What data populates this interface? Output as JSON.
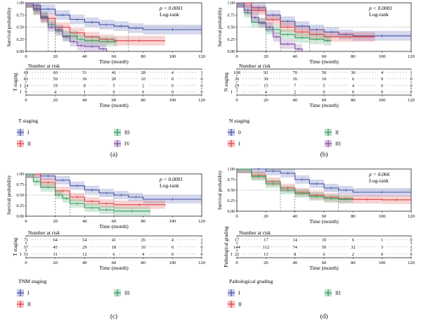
{
  "panels": [
    {
      "letter": "(a)",
      "ylabel": "Survival probability",
      "xlabel": "Time (month)",
      "pvalue": "p < 0.0001",
      "test": "Log-rank",
      "yticks": [
        "0.00",
        "0.25",
        "0.50",
        "0.75",
        "1.00"
      ],
      "xticks": [
        "0",
        "20",
        "40",
        "60",
        "80",
        "100",
        "120"
      ],
      "risk_title": "Number at risk",
      "risk_ylabel": "T staging",
      "risk_xlabel": "Time (month)",
      "legend_title": "T staging",
      "legend": [
        {
          "label": "I",
          "color": "#3f4fa8"
        },
        {
          "label": "III",
          "color": "#2e9b5a"
        },
        {
          "label": "II",
          "color": "#e03a3a"
        },
        {
          "label": "IV",
          "color": "#7d44a3"
        }
      ],
      "risk_rows": [
        {
          "label": "I",
          "color": "#3f4fa8",
          "values": [
            "69",
            "60",
            "51",
            "41",
            "28",
            "4",
            "1"
          ]
        },
        {
          "label": "II",
          "color": "#e03a3a",
          "values": [
            "81",
            "59",
            "36",
            "20",
            "10",
            "0",
            "0"
          ]
        },
        {
          "label": "III",
          "color": "#2e9b5a",
          "values": [
            "24",
            "19",
            "8",
            "5",
            "2",
            "0",
            "0"
          ]
        },
        {
          "label": "IV",
          "color": "#7d44a3",
          "values": [
            "9",
            "4",
            "1",
            "0",
            "0",
            "0",
            "0"
          ]
        }
      ]
    },
    {
      "letter": "(b)",
      "ylabel": "Survival probability",
      "xlabel": "Time (month)",
      "pvalue": "p < 0.0001",
      "test": "Log-rank",
      "yticks": [
        "0.00",
        "0.25",
        "0.50",
        "0.75",
        "1.00"
      ],
      "xticks": [
        "0",
        "20",
        "40",
        "60",
        "80",
        "100",
        "120"
      ],
      "risk_title": "Number at risk",
      "risk_ylabel": "N staging",
      "risk_xlabel": "Time (month)",
      "legend_title": "N staging",
      "legend": [
        {
          "label": "0",
          "color": "#3f4fa8"
        },
        {
          "label": "II",
          "color": "#2e9b5a"
        },
        {
          "label": "I",
          "color": "#e03a3a"
        },
        {
          "label": "III",
          "color": "#7d44a3"
        }
      ],
      "risk_rows": [
        {
          "label": "0",
          "color": "#3f4fa8",
          "values": [
            "108",
            "92",
            "70",
            "50",
            "30",
            "4",
            "1"
          ]
        },
        {
          "label": "I",
          "color": "#e03a3a",
          "values": [
            "36",
            "30",
            "16",
            "10",
            "6",
            "0",
            "0"
          ]
        },
        {
          "label": "II",
          "color": "#2e9b5a",
          "values": [
            "29",
            "15",
            "7",
            "5",
            "4",
            "0",
            "0"
          ]
        },
        {
          "label": "III",
          "color": "#7d44a3",
          "values": [
            "7",
            "4",
            "2",
            "0",
            "0",
            "0",
            "0"
          ]
        }
      ]
    },
    {
      "letter": "(c)",
      "ylabel": "Survival probability",
      "xlabel": "Time (month)",
      "pvalue": "p < 0.0001",
      "test": "Log-rank",
      "yticks": [
        "0.00",
        "0.25",
        "0.50",
        "0.75",
        "1.00"
      ],
      "xticks": [
        "0",
        "20",
        "40",
        "60",
        "80",
        "100",
        "120"
      ],
      "risk_title": "Number at risk",
      "risk_ylabel": "T staging",
      "risk_xlabel": "Time (month)",
      "legend_title": "TNM staging",
      "legend": [
        {
          "label": "I",
          "color": "#3f4fa8"
        },
        {
          "label": "III",
          "color": "#2e9b5a"
        },
        {
          "label": "II",
          "color": "#e03a3a"
        }
      ],
      "risk_rows": [
        {
          "label": "I",
          "color": "#3f4fa8",
          "values": [
            "71",
            "64",
            "54",
            "41",
            "26",
            "4",
            "1"
          ]
        },
        {
          "label": "II",
          "color": "#e03a3a",
          "values": [
            "57",
            "45",
            "29",
            "18",
            "10",
            "0",
            "0"
          ]
        },
        {
          "label": "III",
          "color": "#2e9b5a",
          "values": [
            "51",
            "31",
            "12",
            "6",
            "4",
            "0",
            "0"
          ]
        }
      ]
    },
    {
      "letter": "(d)",
      "ylabel": "Survival probability",
      "xlabel": "Time (month)",
      "pvalue": "p = 0.066",
      "test": "Log-rank",
      "yticks": [
        "0.00",
        "0.25",
        "0.50",
        "0.75",
        "1.00"
      ],
      "xticks": [
        "0",
        "20",
        "40",
        "60",
        "80",
        "100",
        "120"
      ],
      "risk_title": "Number at risk",
      "risk_ylabel": "Pathological grading",
      "risk_xlabel": "Time (month)",
      "legend_title": "Pathological grading",
      "legend": [
        {
          "label": "I",
          "color": "#3f4fa8"
        },
        {
          "label": "III",
          "color": "#2e9b5a"
        },
        {
          "label": "II",
          "color": "#e03a3a"
        }
      ],
      "risk_rows": [
        {
          "label": "I",
          "color": "#3f4fa8",
          "values": [
            "17",
            "17",
            "14",
            "10",
            "6",
            "1",
            "0"
          ]
        },
        {
          "label": "II",
          "color": "#e03a3a",
          "values": [
            "144",
            "112",
            "74",
            "50",
            "32",
            "3",
            "1"
          ]
        },
        {
          "label": "III",
          "color": "#2e9b5a",
          "values": [
            "22",
            "13",
            "8",
            "6",
            "2",
            "0",
            "0"
          ]
        }
      ]
    }
  ],
  "chart_data": [
    {
      "type": "line",
      "panel": "(a)",
      "xlim": [
        0,
        120
      ],
      "ylim": [
        0,
        1
      ],
      "series": [
        {
          "name": "I",
          "color": "#3f4fa8",
          "x": [
            0,
            5,
            10,
            20,
            30,
            40,
            50,
            60,
            70,
            80,
            120
          ],
          "y": [
            1.0,
            0.95,
            0.87,
            0.75,
            0.66,
            0.6,
            0.55,
            0.52,
            0.48,
            0.45,
            0.45
          ]
        },
        {
          "name": "II",
          "color": "#e03a3a",
          "x": [
            0,
            5,
            10,
            20,
            30,
            40,
            50,
            60,
            95
          ],
          "y": [
            1.0,
            0.85,
            0.68,
            0.5,
            0.38,
            0.3,
            0.25,
            0.22,
            0.22
          ]
        },
        {
          "name": "III",
          "color": "#2e9b5a",
          "x": [
            0,
            5,
            10,
            15,
            20,
            25,
            35,
            40,
            50,
            62
          ],
          "y": [
            1.0,
            0.85,
            0.72,
            0.55,
            0.42,
            0.32,
            0.25,
            0.22,
            0.2,
            0.2
          ]
        },
        {
          "name": "IV",
          "color": "#7d44a3",
          "x": [
            0,
            5,
            10,
            15,
            20,
            25,
            30,
            35,
            40,
            50,
            55
          ],
          "y": [
            1.0,
            0.88,
            0.7,
            0.5,
            0.45,
            0.3,
            0.2,
            0.12,
            0.1,
            0.05,
            0.0
          ]
        }
      ]
    },
    {
      "type": "line",
      "panel": "(b)",
      "xlim": [
        0,
        120
      ],
      "ylim": [
        0,
        1
      ],
      "series": [
        {
          "name": "0",
          "color": "#3f4fa8",
          "x": [
            0,
            10,
            20,
            30,
            40,
            50,
            60,
            70,
            80,
            120
          ],
          "y": [
            1.0,
            0.9,
            0.75,
            0.62,
            0.52,
            0.45,
            0.4,
            0.35,
            0.32,
            0.32
          ]
        },
        {
          "name": "I",
          "color": "#e03a3a",
          "x": [
            0,
            10,
            20,
            30,
            40,
            50,
            60,
            95
          ],
          "y": [
            1.0,
            0.85,
            0.65,
            0.5,
            0.4,
            0.35,
            0.3,
            0.3
          ]
        },
        {
          "name": "II",
          "color": "#2e9b5a",
          "x": [
            0,
            5,
            10,
            20,
            30,
            40,
            50,
            60,
            65
          ],
          "y": [
            1.0,
            0.8,
            0.6,
            0.45,
            0.35,
            0.28,
            0.25,
            0.22,
            0.22
          ]
        },
        {
          "name": "III",
          "color": "#7d44a3",
          "x": [
            0,
            5,
            10,
            15,
            20,
            25,
            30,
            40,
            45
          ],
          "y": [
            1.0,
            0.85,
            0.7,
            0.58,
            0.5,
            0.3,
            0.15,
            0.05,
            0.0
          ]
        }
      ]
    },
    {
      "type": "line",
      "panel": "(c)",
      "xlim": [
        0,
        120
      ],
      "ylim": [
        0,
        1
      ],
      "series": [
        {
          "name": "I",
          "color": "#3f4fa8",
          "x": [
            0,
            10,
            20,
            30,
            40,
            50,
            60,
            70,
            80,
            120
          ],
          "y": [
            1.0,
            0.95,
            0.85,
            0.72,
            0.62,
            0.55,
            0.5,
            0.45,
            0.4,
            0.4
          ]
        },
        {
          "name": "II",
          "color": "#e03a3a",
          "x": [
            0,
            10,
            20,
            30,
            40,
            50,
            60,
            95
          ],
          "y": [
            1.0,
            0.8,
            0.6,
            0.45,
            0.35,
            0.3,
            0.27,
            0.25
          ]
        },
        {
          "name": "III",
          "color": "#2e9b5a",
          "x": [
            0,
            5,
            10,
            20,
            25,
            30,
            40,
            50,
            60,
            85
          ],
          "y": [
            1.0,
            0.82,
            0.68,
            0.5,
            0.42,
            0.3,
            0.2,
            0.15,
            0.12,
            0.12
          ]
        }
      ]
    },
    {
      "type": "line",
      "panel": "(d)",
      "xlim": [
        0,
        120
      ],
      "ylim": [
        0,
        1
      ],
      "series": [
        {
          "name": "I",
          "color": "#3f4fa8",
          "x": [
            0,
            10,
            20,
            30,
            40,
            50,
            60,
            70,
            80,
            120
          ],
          "y": [
            1.0,
            1.0,
            0.95,
            0.9,
            0.75,
            0.65,
            0.55,
            0.5,
            0.45,
            0.45
          ]
        },
        {
          "name": "II",
          "color": "#e03a3a",
          "x": [
            0,
            10,
            20,
            30,
            40,
            50,
            60,
            70,
            80,
            100,
            120
          ],
          "y": [
            1.0,
            0.85,
            0.7,
            0.55,
            0.45,
            0.38,
            0.33,
            0.3,
            0.28,
            0.27,
            0.27
          ]
        },
        {
          "name": "III",
          "color": "#2e9b5a",
          "x": [
            0,
            10,
            20,
            30,
            40,
            50,
            60,
            70,
            80
          ],
          "y": [
            1.0,
            0.82,
            0.65,
            0.5,
            0.42,
            0.35,
            0.3,
            0.28,
            0.28
          ]
        }
      ]
    }
  ]
}
